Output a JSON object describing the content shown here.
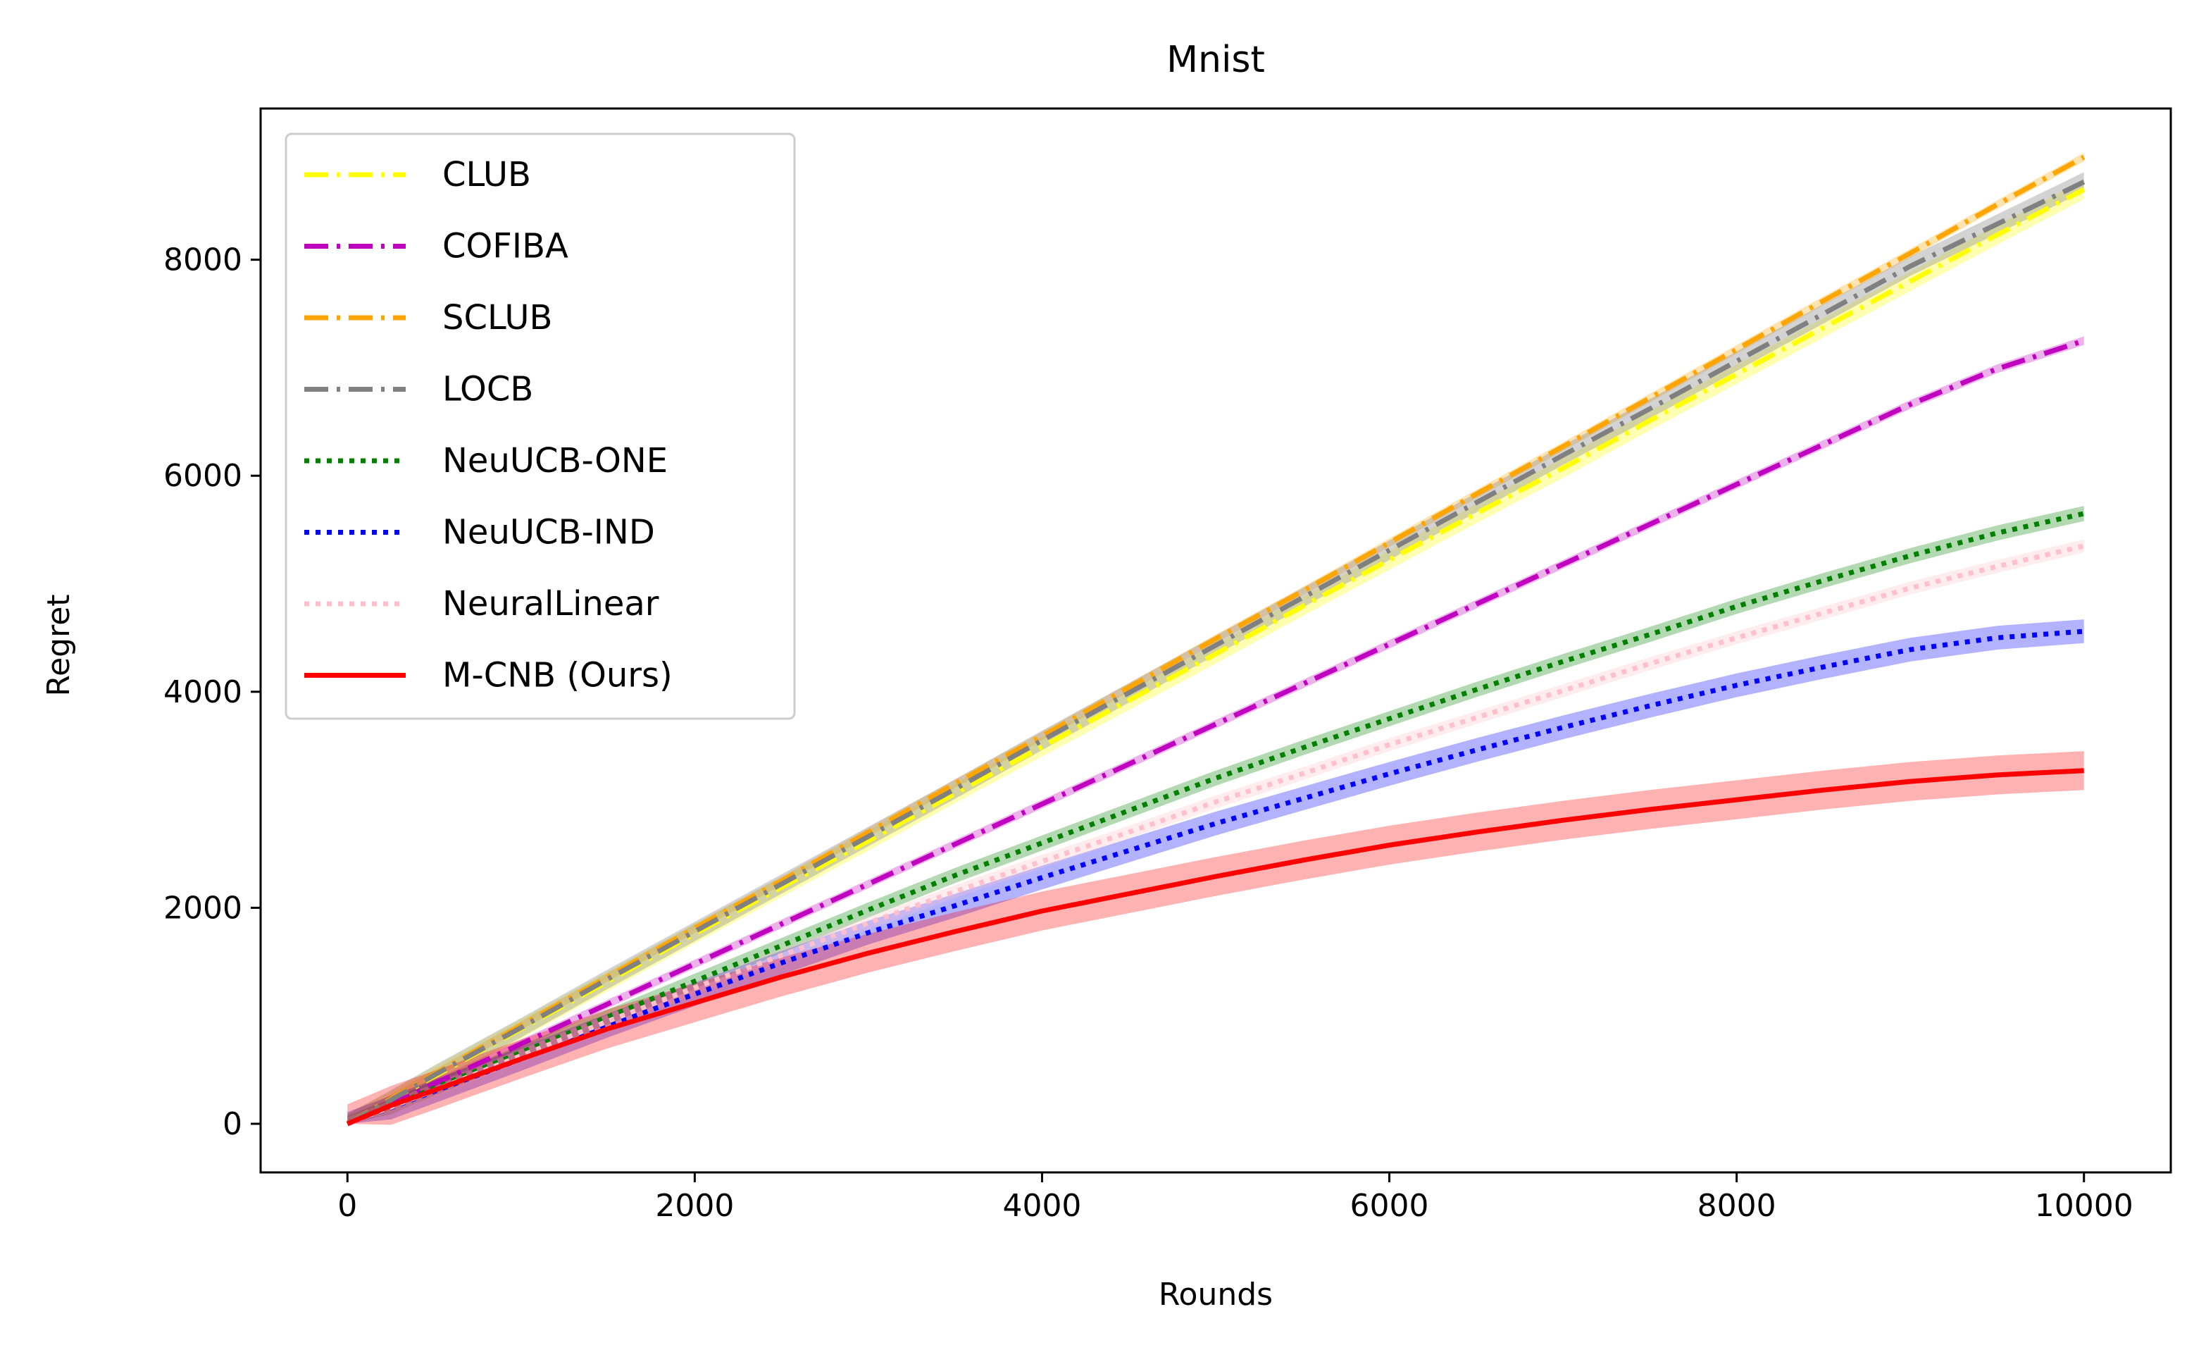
{
  "chart_data": {
    "type": "line",
    "title": "Mnist",
    "xlabel": "Rounds",
    "ylabel": "Regret",
    "xlim": [
      -500,
      10500
    ],
    "ylim": [
      -450,
      9400
    ],
    "xticks": [
      0,
      2000,
      4000,
      6000,
      8000,
      10000
    ],
    "yticks": [
      0,
      2000,
      4000,
      6000,
      8000
    ],
    "x": [
      0,
      250,
      500,
      1000,
      1500,
      2000,
      2500,
      3000,
      3500,
      4000,
      4500,
      5000,
      5500,
      6000,
      6500,
      7000,
      7500,
      8000,
      8500,
      9000,
      9500,
      10000
    ],
    "legend_position": "upper-left",
    "grid": false,
    "series": [
      {
        "name": "CLUB",
        "color": "#ffff00",
        "linestyle": "dashdot",
        "band": 90,
        "values": [
          0,
          210,
          440,
          880,
          1320,
          1760,
          2190,
          2620,
          3060,
          3490,
          3920,
          4350,
          4790,
          5220,
          5650,
          6070,
          6510,
          6940,
          7370,
          7800,
          8230,
          8650
        ]
      },
      {
        "name": "COFIBA",
        "color": "#bf00bf",
        "linestyle": "dashdot",
        "band": 40,
        "values": [
          0,
          180,
          370,
          740,
          1110,
          1480,
          1850,
          2220,
          2590,
          2960,
          3330,
          3700,
          4070,
          4440,
          4810,
          5180,
          5550,
          5920,
          6290,
          6660,
          6990,
          7250
        ]
      },
      {
        "name": "SCLUB",
        "color": "#ffa500",
        "linestyle": "dashdot",
        "band": 40,
        "values": [
          0,
          230,
          460,
          910,
          1360,
          1810,
          2250,
          2700,
          3150,
          3590,
          4040,
          4490,
          4930,
          5380,
          5830,
          6270,
          6720,
          7170,
          7620,
          8060,
          8510,
          8950
        ]
      },
      {
        "name": "LOCB",
        "color": "#808080",
        "linestyle": "dashdot",
        "band": 90,
        "values": [
          0,
          220,
          450,
          890,
          1340,
          1780,
          2220,
          2660,
          3100,
          3550,
          3990,
          4430,
          4870,
          5310,
          5750,
          6190,
          6620,
          7060,
          7500,
          7940,
          8330,
          8720
        ]
      },
      {
        "name": "NeuUCB-ONE",
        "color": "#008000",
        "linestyle": "dotted",
        "band": 70,
        "values": [
          0,
          160,
          330,
          660,
          990,
          1320,
          1650,
          1980,
          2300,
          2600,
          2900,
          3200,
          3480,
          3750,
          4020,
          4280,
          4530,
          4790,
          5030,
          5260,
          5470,
          5650
        ]
      },
      {
        "name": "NeuUCB-IND",
        "color": "#0000ff",
        "linestyle": "dotted",
        "band": 110,
        "values": [
          0,
          150,
          300,
          600,
          910,
          1200,
          1490,
          1770,
          2020,
          2280,
          2530,
          2780,
          3010,
          3240,
          3460,
          3670,
          3870,
          4060,
          4230,
          4390,
          4500,
          4560
        ]
      },
      {
        "name": "NeuralLinear",
        "color": "#ffc0cb",
        "linestyle": "dotted",
        "band": 60,
        "values": [
          0,
          155,
          310,
          630,
          950,
          1260,
          1560,
          1860,
          2150,
          2430,
          2700,
          2980,
          3240,
          3510,
          3760,
          4010,
          4260,
          4500,
          4730,
          4960,
          5160,
          5350
        ]
      },
      {
        "name": "M-CNB (Ours)",
        "color": "#ff0000",
        "linestyle": "solid",
        "band": 180,
        "values": [
          0,
          170,
          310,
          600,
          880,
          1120,
          1360,
          1580,
          1780,
          1970,
          2130,
          2290,
          2440,
          2580,
          2700,
          2810,
          2910,
          3000,
          3090,
          3170,
          3230,
          3270
        ]
      }
    ]
  }
}
